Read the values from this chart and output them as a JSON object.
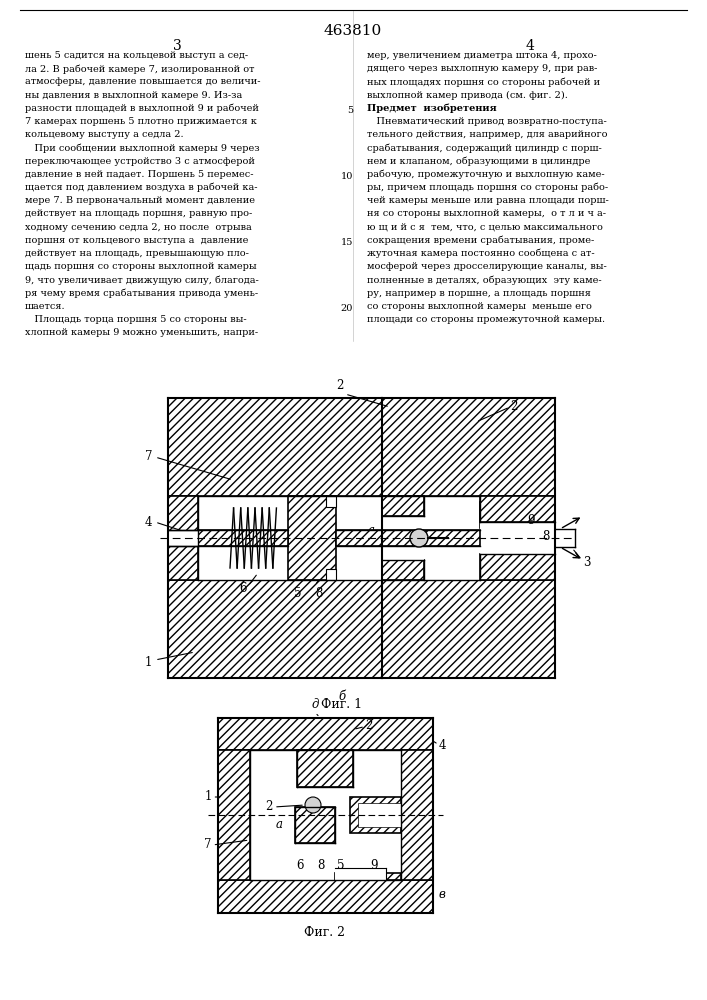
{
  "patent_number": "463810",
  "page_left": "3",
  "page_right": "4",
  "text_left": [
    "шень 5 садится на кольцевой выступ а сед-",
    "ла 2. В рабочей камере 7, изолированной от",
    "атмосферы, давление повышается до величи-",
    "ны давления в выхлопной камере 9. Из-за",
    "разности площадей в выхлопной 9 и рабочей",
    "7 камерах поршень 5 плотно прижимается к",
    "кольцевому выступу а седла 2.",
    "   При сообщении выхлопной камеры 9 через",
    "переключающее устройство 3 с атмосферой",
    "давление в ней падает. Поршень 5 перемес-",
    "щается под давлением воздуха в рабочей ка-",
    "мере 7. В первоначальный момент давление",
    "действует на площадь поршня, равную про-",
    "ходному сечению седла 2, но после  отрыва",
    "поршня от кольцевого выступа а  давление",
    "действует на площадь, превышающую пло-",
    "щадь поршня со стороны выхлопной камеры",
    "9, что увеличивает движущую силу, благода-",
    "ря чему время срабатывания привода умень-",
    "шается.",
    "   Площадь торца поршня 5 со стороны вы-",
    "хлопной камеры 9 можно уменьшить, напри-"
  ],
  "text_right": [
    "мер, увеличением диаметра штока 4, прохо-",
    "дящего через выхлопную камеру 9, при рав-",
    "ных площадях поршня со стороны рабочей и",
    "выхлопной камер привода (см. фиг. 2).",
    "Предмет  изобретения",
    "   Пневматический привод возвратно-поступа-",
    "тельного действия, например, для аварийного",
    "срабатывания, содержащий цилиндр с порш-",
    "нем и клапаном, образующими в цилиндре",
    "рабочую, промежуточную и выхлопную каме-",
    "ры, причем площадь поршня со стороны рабо-",
    "чей камеры меньше или равна площади порш-",
    "ня со стороны выхлопной камеры,  о т л и ч а-",
    "ю щ и й с я  тем, что, с целью максимального",
    "сокращения времени срабатывания, проме-",
    "жуточная камера постоянно сообщена с ат-",
    "мосферой через дросселирующие каналы, вы-",
    "полненные в деталях, образующих  эту каме-",
    "ру, например в поршне, а площадь поршня",
    "со стороны выхлопной камеры  меньше его",
    "площади со стороны промежуточной камеры."
  ],
  "fig1_caption": "Фиг. 1",
  "fig2_caption": "Фиг. 2",
  "border_color": "#000000",
  "bg_color": "#ffffff",
  "hatch_color": "#000000",
  "text_color": "#000000"
}
